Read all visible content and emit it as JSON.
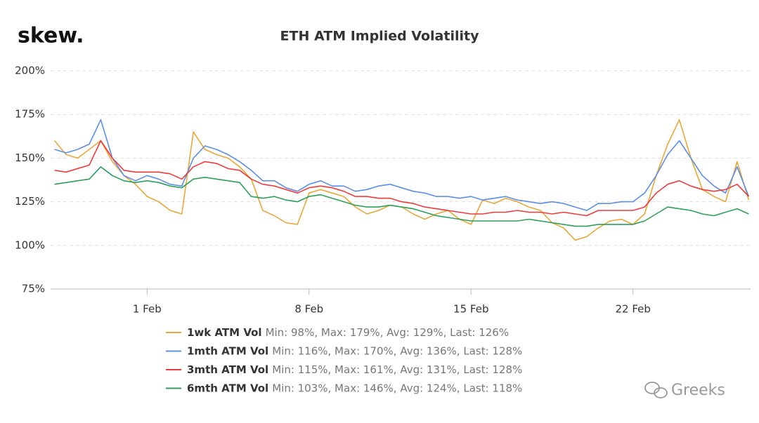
{
  "logo": "skew.",
  "watermark": "Greeks",
  "chart_data": {
    "type": "line",
    "title": "ETH ATM Implied Volatility",
    "x": [
      -3,
      -2.5,
      -2,
      -1.5,
      -1,
      -0.5,
      0,
      0.5,
      1,
      1.5,
      2,
      2.5,
      3,
      3.5,
      4,
      4.5,
      5,
      5.5,
      6,
      6.5,
      7,
      7.5,
      8,
      8.5,
      9,
      9.5,
      10,
      10.5,
      11,
      11.5,
      12,
      12.5,
      13,
      13.5,
      14,
      14.5,
      15,
      15.5,
      16,
      16.5,
      17,
      17.5,
      18,
      18.5,
      19,
      19.5,
      20,
      20.5,
      21,
      21.5,
      22,
      22.5,
      23,
      23.5,
      24,
      24.5,
      25,
      25.5,
      26,
      26.5,
      27
    ],
    "xlim": [
      -3.17,
      27.08
    ],
    "xticks": [
      {
        "value": 1,
        "label": "1 Feb"
      },
      {
        "value": 8,
        "label": "8 Feb"
      },
      {
        "value": 15,
        "label": "15 Feb"
      },
      {
        "value": 22,
        "label": "22 Feb"
      }
    ],
    "ylim": [
      75,
      200
    ],
    "yticks": [
      {
        "value": 75,
        "label": "75%"
      },
      {
        "value": 100,
        "label": "100%"
      },
      {
        "value": 125,
        "label": "125%"
      },
      {
        "value": 150,
        "label": "150%"
      },
      {
        "value": 175,
        "label": "175%"
      },
      {
        "value": 200,
        "label": "200%"
      }
    ],
    "grid": true,
    "series": [
      {
        "name": "1wk ATM Vol",
        "stats": "Min: 98%, Max: 179%, Avg: 129%, Last: 126%",
        "color": "#e8a838",
        "values": [
          160,
          152,
          150,
          155,
          160,
          148,
          140,
          135,
          128,
          125,
          120,
          118,
          165,
          155,
          152,
          150,
          145,
          138,
          120,
          117,
          113,
          112,
          130,
          132,
          130,
          128,
          122,
          118,
          120,
          123,
          122,
          118,
          115,
          118,
          120,
          115,
          112,
          126,
          124,
          127,
          125,
          122,
          120,
          113,
          110,
          103,
          105,
          110,
          114,
          115,
          112,
          118,
          140,
          158,
          172,
          150,
          132,
          128,
          125,
          148,
          126
        ]
      },
      {
        "name": "1mth ATM Vol",
        "stats": "Min: 116%, Max: 170%, Avg: 136%, Last: 128%",
        "color": "#5b8ee6",
        "values": [
          155,
          153,
          155,
          158,
          172,
          150,
          140,
          137,
          140,
          138,
          135,
          134,
          150,
          157,
          155,
          152,
          148,
          143,
          137,
          137,
          133,
          131,
          135,
          137,
          134,
          134,
          131,
          132,
          134,
          135,
          133,
          131,
          130,
          128,
          128,
          127,
          128,
          126,
          127,
          128,
          126,
          125,
          124,
          125,
          124,
          122,
          120,
          124,
          124,
          125,
          125,
          130,
          140,
          152,
          160,
          150,
          140,
          134,
          130,
          145,
          128
        ]
      },
      {
        "name": "3mth ATM Vol",
        "stats": "Min: 115%, Max: 161%, Avg: 131%, Last: 128%",
        "color": "#ef3b3b",
        "values": [
          143,
          142,
          144,
          146,
          160,
          150,
          143,
          142,
          142,
          142,
          141,
          138,
          145,
          148,
          147,
          144,
          143,
          138,
          135,
          134,
          132,
          130,
          133,
          134,
          133,
          131,
          128,
          128,
          127,
          127,
          125,
          124,
          122,
          121,
          120,
          119,
          118,
          118,
          119,
          119,
          120,
          119,
          119,
          118,
          119,
          118,
          117,
          120,
          120,
          120,
          120,
          122,
          130,
          135,
          137,
          134,
          132,
          131,
          132,
          135,
          128
        ]
      },
      {
        "name": "6mth ATM Vol",
        "stats": "Min: 103%, Max: 146%, Avg: 124%, Last: 118%",
        "color": "#2ca05a",
        "values": [
          135,
          136,
          137,
          138,
          145,
          140,
          137,
          136,
          137,
          136,
          134,
          133,
          138,
          139,
          138,
          137,
          136,
          128,
          127,
          128,
          126,
          125,
          128,
          129,
          127,
          125,
          123,
          122,
          122,
          123,
          122,
          121,
          119,
          117,
          116,
          115,
          114,
          114,
          114,
          114,
          114,
          115,
          114,
          113,
          112,
          111,
          111,
          112,
          112,
          112,
          112,
          114,
          118,
          122,
          121,
          120,
          118,
          117,
          119,
          121,
          118
        ]
      }
    ]
  }
}
